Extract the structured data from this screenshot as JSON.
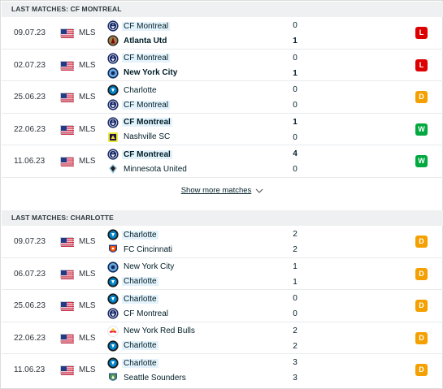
{
  "sections": [
    {
      "title": "LAST MATCHES: CF MONTREAL",
      "rows": [
        {
          "date": "09.07.23",
          "competition": "MLS",
          "home": {
            "name": "CF Montreal",
            "crest": "montreal-crest",
            "bold": false,
            "hl": true
          },
          "away": {
            "name": "Atlanta Utd",
            "crest": "atlanta-crest",
            "bold": true,
            "hl": false
          },
          "home_score": "0",
          "away_score": "1",
          "result": "L"
        },
        {
          "date": "02.07.23",
          "competition": "MLS",
          "home": {
            "name": "CF Montreal",
            "crest": "montreal-crest",
            "bold": false,
            "hl": true
          },
          "away": {
            "name": "New York City",
            "crest": "nycfc-crest",
            "bold": true,
            "hl": false
          },
          "home_score": "0",
          "away_score": "1",
          "result": "L"
        },
        {
          "date": "25.06.23",
          "competition": "MLS",
          "home": {
            "name": "Charlotte",
            "crest": "charlotte-crest",
            "bold": false,
            "hl": false
          },
          "away": {
            "name": "CF Montreal",
            "crest": "montreal-crest",
            "bold": false,
            "hl": true
          },
          "home_score": "0",
          "away_score": "0",
          "result": "D"
        },
        {
          "date": "22.06.23",
          "competition": "MLS",
          "home": {
            "name": "CF Montreal",
            "crest": "montreal-crest",
            "bold": true,
            "hl": true
          },
          "away": {
            "name": "Nashville SC",
            "crest": "nashville-crest",
            "bold": false,
            "hl": false
          },
          "home_score": "1",
          "away_score": "0",
          "result": "W"
        },
        {
          "date": "11.06.23",
          "competition": "MLS",
          "home": {
            "name": "CF Montreal",
            "crest": "montreal-crest",
            "bold": true,
            "hl": true
          },
          "away": {
            "name": "Minnesota United",
            "crest": "minnesota-crest",
            "bold": false,
            "hl": false
          },
          "home_score": "4",
          "away_score": "0",
          "result": "W"
        }
      ],
      "show_more": "Show more matches"
    },
    {
      "title": "LAST MATCHES: CHARLOTTE",
      "rows": [
        {
          "date": "09.07.23",
          "competition": "MLS",
          "home": {
            "name": "Charlotte",
            "crest": "charlotte-crest",
            "bold": false,
            "hl": true
          },
          "away": {
            "name": "FC Cincinnati",
            "crest": "cincinnati-crest",
            "bold": false,
            "hl": false
          },
          "home_score": "2",
          "away_score": "2",
          "result": "D"
        },
        {
          "date": "06.07.23",
          "competition": "MLS",
          "home": {
            "name": "New York City",
            "crest": "nycfc-crest",
            "bold": false,
            "hl": false
          },
          "away": {
            "name": "Charlotte",
            "crest": "charlotte-crest",
            "bold": false,
            "hl": true
          },
          "home_score": "1",
          "away_score": "1",
          "result": "D"
        },
        {
          "date": "25.06.23",
          "competition": "MLS",
          "home": {
            "name": "Charlotte",
            "crest": "charlotte-crest",
            "bold": false,
            "hl": true
          },
          "away": {
            "name": "CF Montreal",
            "crest": "montreal-crest",
            "bold": false,
            "hl": false
          },
          "home_score": "0",
          "away_score": "0",
          "result": "D"
        },
        {
          "date": "22.06.23",
          "competition": "MLS",
          "home": {
            "name": "New York Red Bulls",
            "crest": "redbulls-crest",
            "bold": false,
            "hl": false
          },
          "away": {
            "name": "Charlotte",
            "crest": "charlotte-crest",
            "bold": false,
            "hl": true
          },
          "home_score": "2",
          "away_score": "2",
          "result": "D"
        },
        {
          "date": "11.06.23",
          "competition": "MLS",
          "home": {
            "name": "Charlotte",
            "crest": "charlotte-crest",
            "bold": false,
            "hl": true
          },
          "away": {
            "name": "Seattle Sounders",
            "crest": "seattle-crest",
            "bold": false,
            "hl": false
          },
          "home_score": "3",
          "away_score": "3",
          "result": "D"
        }
      ]
    }
  ],
  "flag_icon": "usa-flag-icon",
  "colors": {
    "loss": "#dc0000",
    "draw": "#f3a000",
    "win": "#00a83f",
    "highlight": "#e4f2fb"
  }
}
